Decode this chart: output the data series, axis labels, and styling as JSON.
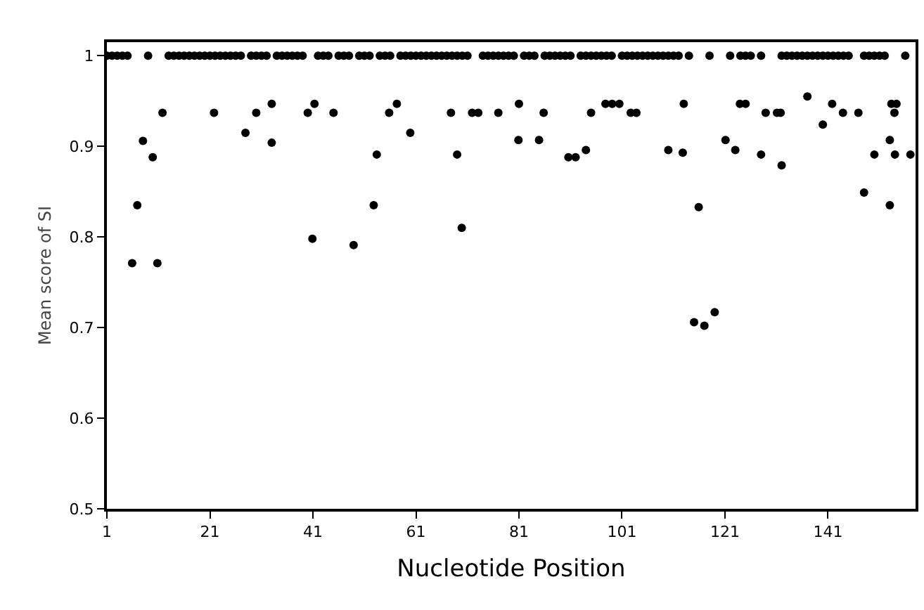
{
  "chart_data": {
    "type": "scatter",
    "xlabel": "Nucleotide Position",
    "ylabel": "Mean score of SI",
    "xlim": [
      1,
      158
    ],
    "xticks": [
      1,
      21,
      41,
      61,
      81,
      101,
      121,
      141
    ],
    "ylim": [
      0.5,
      1.015
    ],
    "yticks": [
      0.5,
      0.6,
      0.7,
      0.8,
      0.9,
      1
    ],
    "marker": "circle",
    "series": [
      {
        "color": "#000000",
        "x": [
          1,
          2,
          3,
          4,
          5,
          9,
          13,
          14,
          15,
          16,
          17,
          18,
          19,
          20,
          21,
          22,
          23,
          24,
          25,
          26,
          27,
          29,
          30,
          31,
          32,
          34,
          35,
          36,
          37,
          38,
          39,
          42,
          43,
          44,
          46,
          47,
          48,
          50,
          51,
          52,
          54,
          55,
          56,
          58,
          59,
          60,
          61,
          62,
          63,
          64,
          65,
          66,
          67,
          68,
          69,
          70,
          71,
          74,
          75,
          76,
          77,
          78,
          79,
          80,
          82,
          83,
          84,
          86,
          87,
          88,
          89,
          90,
          91,
          93,
          94,
          95,
          96,
          97,
          98,
          99,
          101,
          102,
          103,
          104,
          105,
          106,
          107,
          108,
          109,
          110,
          111,
          112,
          114,
          118,
          122,
          124,
          125,
          126,
          128,
          132,
          133,
          134,
          135,
          136,
          137,
          138,
          139,
          140,
          141,
          142,
          143,
          144,
          145,
          148,
          149,
          150,
          151,
          152,
          156
        ],
        "values": [
          1,
          1,
          1,
          1,
          1,
          1,
          1,
          1,
          1,
          1,
          1,
          1,
          1,
          1,
          1,
          1,
          1,
          1,
          1,
          1,
          1,
          1,
          1,
          1,
          1,
          1,
          1,
          1,
          1,
          1,
          1,
          1,
          1,
          1,
          1,
          1,
          1,
          1,
          1,
          1,
          1,
          1,
          1,
          1,
          1,
          1,
          1,
          1,
          1,
          1,
          1,
          1,
          1,
          1,
          1,
          1,
          1,
          1,
          1,
          1,
          1,
          1,
          1,
          1,
          1,
          1,
          1,
          1,
          1,
          1,
          1,
          1,
          1,
          1,
          1,
          1,
          1,
          1,
          1,
          1,
          1,
          1,
          1,
          1,
          1,
          1,
          1,
          1,
          1,
          1,
          1,
          1,
          1,
          1,
          1,
          1,
          1,
          1,
          1,
          1,
          1,
          1,
          1,
          1,
          1,
          1,
          1,
          1,
          1,
          1,
          1,
          1,
          1,
          1,
          1,
          1,
          1,
          1,
          1
        ]
      },
      {
        "color": "#000000",
        "x": [
          11.8,
          21.8,
          30,
          40,
          45,
          55.8,
          67.8,
          71.9,
          73.1,
          77,
          85.8,
          95,
          102.7,
          103.8,
          128.9,
          131.1,
          131.8,
          143.9,
          146.9,
          153.9,
          33,
          41.3,
          57.3,
          81,
          97.8,
          99.1,
          100.5,
          113,
          123.9,
          125,
          141.8,
          153.3,
          154.3,
          137,
          140,
          8,
          9.9,
          27.9,
          33,
          53.4,
          6.9,
          52.8,
          40.9,
          48.9,
          5.9,
          10.8,
          59.9,
          69,
          80.9,
          84.9,
          90.6,
          92,
          94,
          69.9,
          110,
          112.8,
          121.1,
          123,
          128,
          132,
          153,
          150,
          154,
          157,
          148,
          153,
          115.9,
          115,
          117,
          119
        ],
        "values": [
          0.937,
          0.937,
          0.937,
          0.937,
          0.937,
          0.937,
          0.937,
          0.937,
          0.937,
          0.937,
          0.937,
          0.937,
          0.937,
          0.937,
          0.937,
          0.937,
          0.937,
          0.937,
          0.937,
          0.937,
          0.947,
          0.947,
          0.947,
          0.947,
          0.947,
          0.947,
          0.947,
          0.947,
          0.947,
          0.947,
          0.947,
          0.947,
          0.947,
          0.955,
          0.924,
          0.906,
          0.888,
          0.915,
          0.904,
          0.891,
          0.835,
          0.835,
          0.798,
          0.791,
          0.771,
          0.771,
          0.915,
          0.891,
          0.907,
          0.907,
          0.888,
          0.888,
          0.896,
          0.81,
          0.896,
          0.893,
          0.907,
          0.896,
          0.891,
          0.879,
          0.907,
          0.891,
          0.891,
          0.891,
          0.849,
          0.835,
          0.833,
          0.706,
          0.702,
          0.717
        ]
      }
    ]
  }
}
